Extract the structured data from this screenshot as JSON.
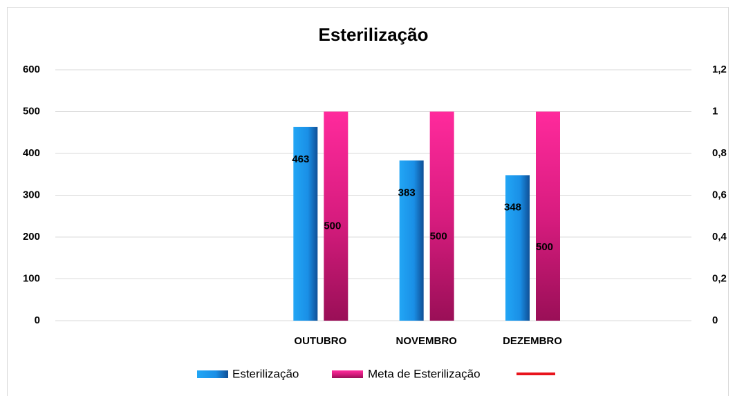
{
  "chart_data": {
    "type": "bar",
    "title": "Esterilização",
    "categories": [
      null,
      null,
      "OUTUBRO",
      "NOVEMBRO",
      "DEZEMBRO",
      null
    ],
    "series": [
      {
        "name": "Esterilização",
        "color": "#1a8fe6",
        "values": [
          null,
          null,
          463,
          383,
          348,
          null
        ]
      },
      {
        "name": "Meta de Esterilização",
        "color": "#f0238f",
        "values": [
          null,
          null,
          500,
          500,
          500,
          null
        ]
      },
      {
        "color": "#e8141c",
        "axis": "y2",
        "values": [
          null,
          null,
          null,
          null,
          null,
          null
        ]
      }
    ],
    "ylim": [
      0,
      600
    ],
    "yticks": [
      0,
      100,
      200,
      300,
      400,
      500,
      600
    ],
    "y2lim": [
      0,
      1.2
    ],
    "y2ticks": [
      0,
      {
        "value": 0.2,
        "label": "0,2"
      },
      {
        "value": 0.4,
        "label": "0,4"
      },
      {
        "value": 0.6,
        "label": "0,6"
      },
      {
        "value": 0.8,
        "label": "0,8"
      },
      1,
      {
        "value": 1.2,
        "label": "1,2"
      }
    ],
    "grid": true,
    "legend": "bottom"
  }
}
